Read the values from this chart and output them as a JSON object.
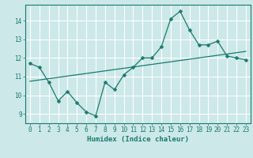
{
  "xlabel": "Humidex (Indice chaleur)",
  "ylabel": "",
  "background_color": "#cce8e8",
  "grid_color": "#ffffff",
  "line_color": "#1a7a6e",
  "xlim": [
    -0.5,
    23.5
  ],
  "ylim": [
    8.5,
    14.85
  ],
  "xticks": [
    0,
    1,
    2,
    3,
    4,
    5,
    6,
    7,
    8,
    9,
    10,
    11,
    12,
    13,
    14,
    15,
    16,
    17,
    18,
    19,
    20,
    21,
    22,
    23
  ],
  "yticks": [
    9,
    10,
    11,
    12,
    13,
    14
  ],
  "curve_x": [
    0,
    1,
    2,
    3,
    4,
    5,
    6,
    7,
    8,
    9,
    10,
    11,
    12,
    13,
    14,
    15,
    16,
    17,
    18,
    19,
    20,
    21,
    22,
    23
  ],
  "curve_y": [
    11.7,
    11.5,
    10.7,
    9.7,
    10.2,
    9.6,
    9.1,
    8.9,
    10.7,
    10.3,
    11.1,
    11.5,
    12.0,
    12.0,
    12.6,
    14.1,
    14.5,
    13.5,
    12.7,
    12.7,
    12.9,
    12.1,
    12.0,
    11.9
  ],
  "trend_x": [
    0,
    23
  ],
  "trend_y": [
    10.75,
    12.35
  ],
  "marker_size": 2.5,
  "line_width": 0.9,
  "tick_fontsize": 5.5,
  "xlabel_fontsize": 6.5
}
